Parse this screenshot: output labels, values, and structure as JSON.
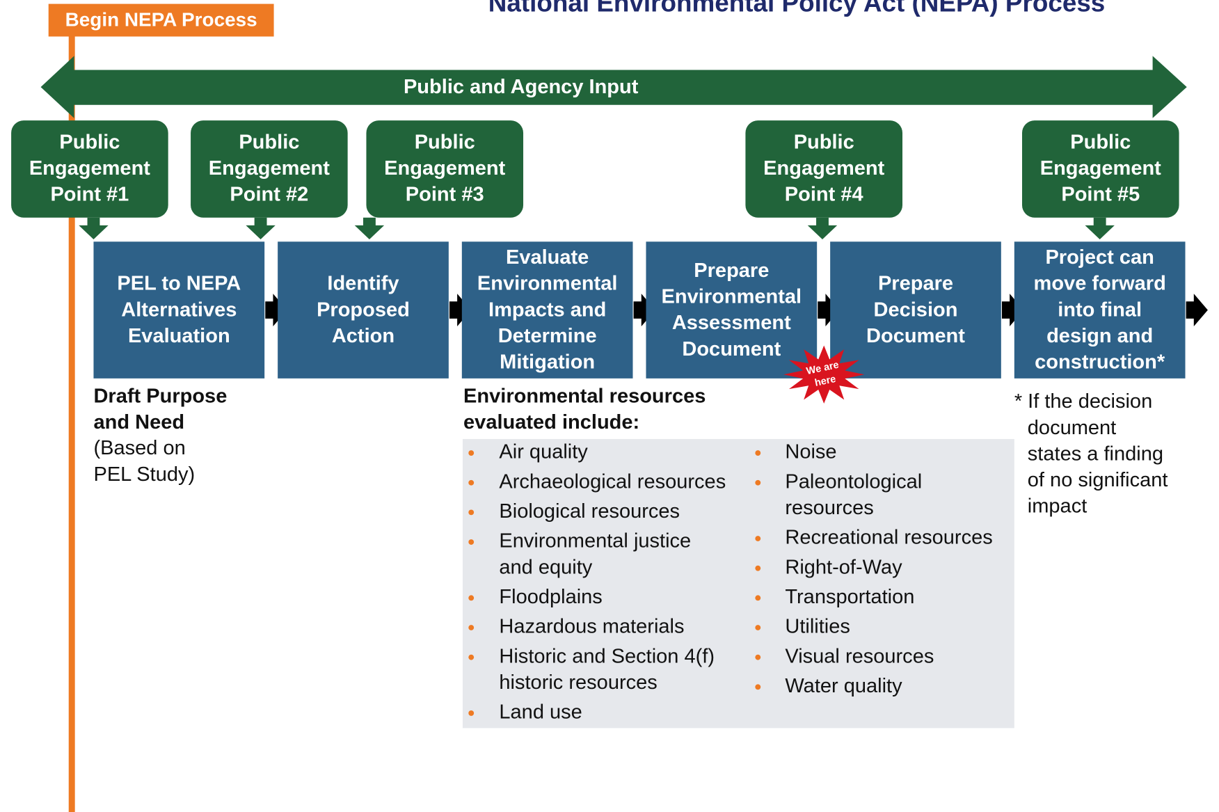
{
  "title": "National Environmental Policy Act (NEPA) Process",
  "start_label": "Begin NEPA Process",
  "input_banner": "Public and Agency Input",
  "engagement_points": [
    [
      "Public",
      "Engagement",
      "Point #1"
    ],
    [
      "Public",
      "Engagement",
      "Point #2"
    ],
    [
      "Public",
      "Engagement",
      "Point #3"
    ],
    [
      "Public",
      "Engagement",
      "Point #4"
    ],
    [
      "Public",
      "Engagement",
      "Point #5"
    ]
  ],
  "steps": [
    [
      "PEL to NEPA",
      "Alternatives",
      "Evaluation"
    ],
    [
      "Identify",
      "Proposed",
      "Action"
    ],
    [
      "Evaluate",
      "Environmental",
      "Impacts and",
      "Determine",
      "Mitigation"
    ],
    [
      "Prepare",
      "Environmental",
      "Assessment",
      "Document"
    ],
    [
      "Prepare",
      "Decision",
      "Document"
    ],
    [
      "Project can",
      "move forward",
      "into final",
      "design and",
      "construction*"
    ]
  ],
  "badge": [
    "We are",
    "here"
  ],
  "draft": {
    "heading": [
      "Draft Purpose",
      "and Need"
    ],
    "note": [
      "(Based on",
      "PEL Study)"
    ]
  },
  "resources": {
    "heading": [
      "Environmental resources",
      "evaluated include:"
    ],
    "left": [
      [
        "Air quality"
      ],
      [
        "Archaeological resources"
      ],
      [
        "Biological resources"
      ],
      [
        "Environmental justice",
        "and equity"
      ],
      [
        "Floodplains"
      ],
      [
        "Hazardous materials"
      ],
      [
        "Historic and Section 4(f)",
        "historic resources"
      ],
      [
        "Land use"
      ]
    ],
    "right": [
      [
        "Noise"
      ],
      [
        "Paleontological",
        "resources"
      ],
      [
        "Recreational resources"
      ],
      [
        "Right-of-Way"
      ],
      [
        "Transportation"
      ],
      [
        "Utilities"
      ],
      [
        "Visual resources"
      ],
      [
        "Water quality"
      ]
    ]
  },
  "footnote": [
    "* If the decision",
    "document",
    "states a finding",
    "of no significant",
    "impact"
  ]
}
